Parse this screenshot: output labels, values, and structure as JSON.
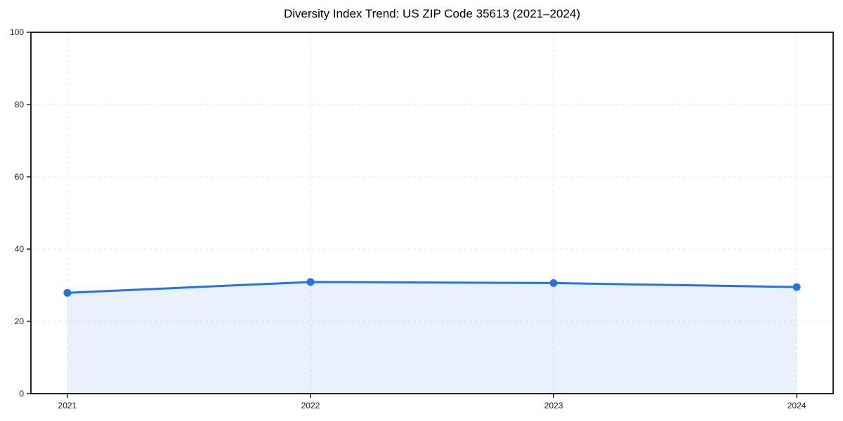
{
  "chart_data": {
    "type": "area",
    "title": "Diversity Index Trend: US ZIP Code 35613 (2021–2024)",
    "categories": [
      2021,
      2022,
      2023,
      2024
    ],
    "series": [
      {
        "name": "Diversity Index",
        "values": [
          27.9,
          30.9,
          30.6,
          29.5
        ]
      }
    ],
    "xlabel": "",
    "ylabel": "",
    "ylim": [
      0,
      100
    ],
    "yticks": [
      0,
      20,
      40,
      60,
      80,
      100
    ],
    "xtick_labels": [
      "2021",
      "2022",
      "2023",
      "2024"
    ],
    "grid": true,
    "grid_style": "dashed",
    "legend": false,
    "marker": "circle",
    "colors": {
      "line": "#2275e0",
      "marker": "#2275e0",
      "fill": "#2275e0",
      "fill_opacity": 0.1,
      "grid": "#e4e4e4",
      "axis": "#0a0a0a",
      "tick_text": "#1a1a1a",
      "background": "#ffffff"
    }
  }
}
